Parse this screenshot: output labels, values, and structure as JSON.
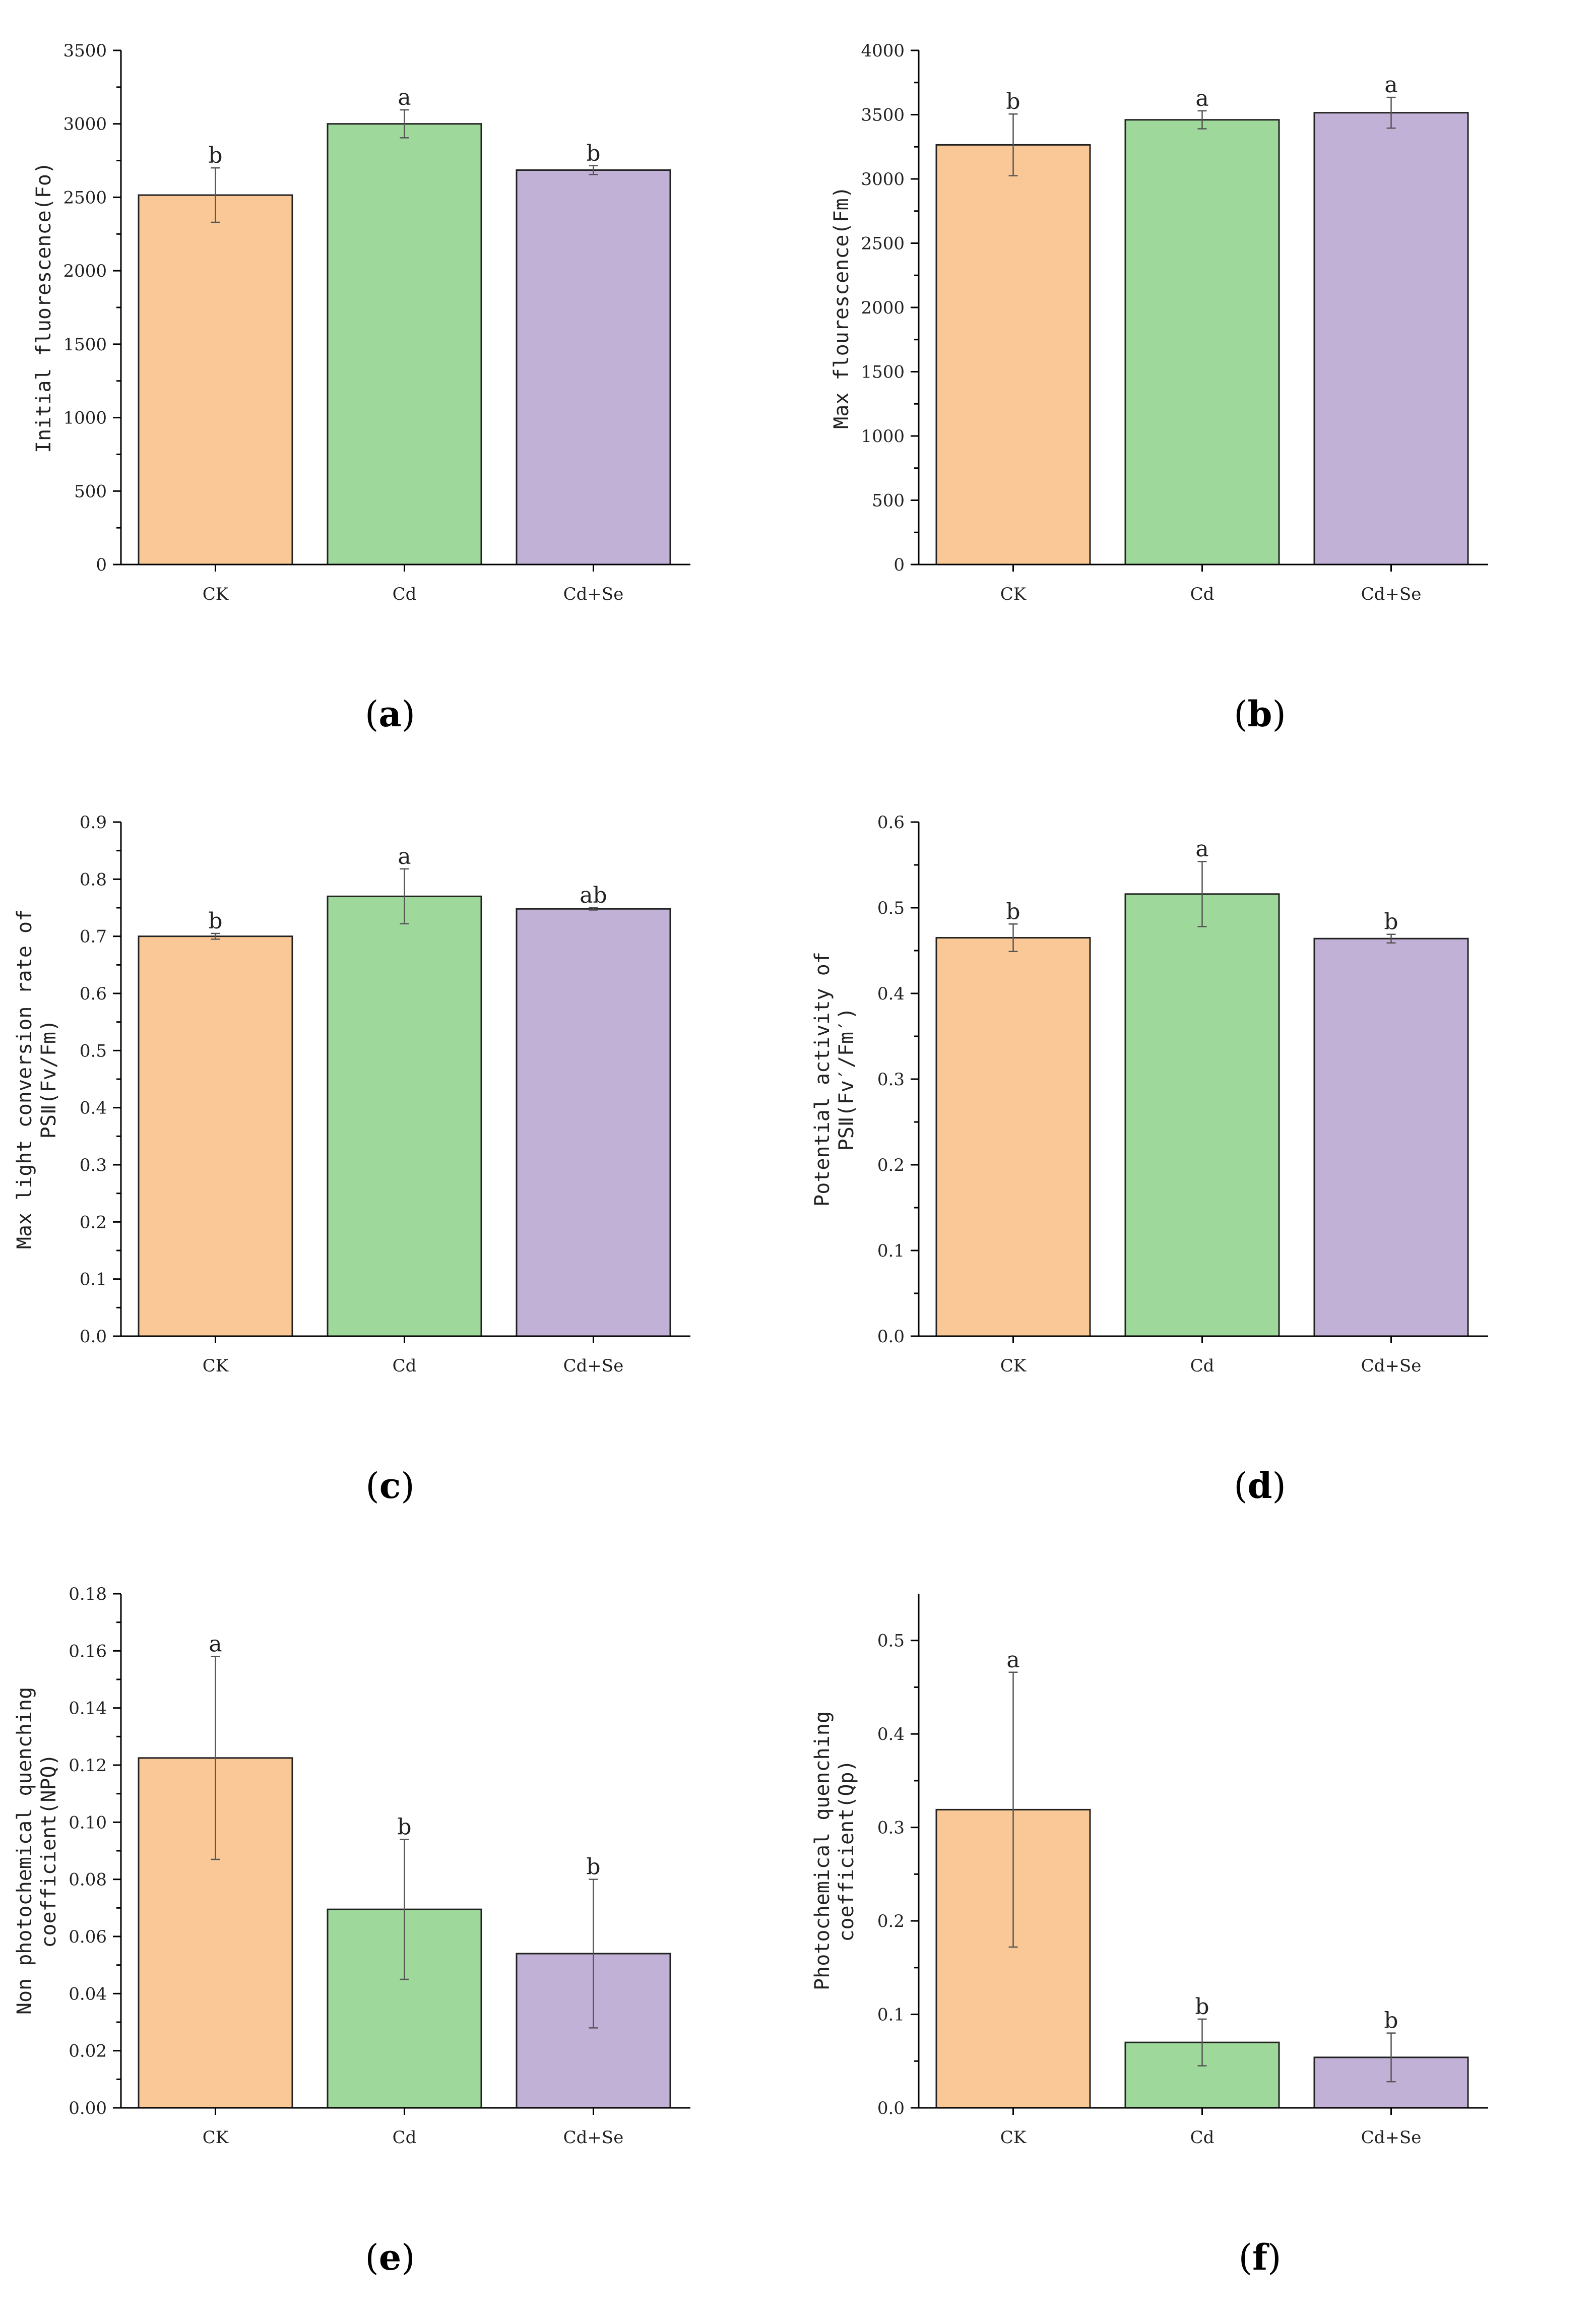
{
  "colors": {
    "CK": "#f9c896",
    "Cd": "#9ed89a",
    "Cd+Se": "#c1b1d6"
  },
  "chart_data": [
    {
      "id": "a",
      "type": "bar",
      "caption": "a",
      "categories": [
        "CK",
        "Cd",
        "Cd+Se"
      ],
      "values": [
        2515,
        3000,
        2685
      ],
      "errors": [
        185,
        95,
        30
      ],
      "significance": [
        "b",
        "a",
        "b"
      ],
      "ylabel": "Initial fluorescence(Fo)",
      "ylim": [
        0,
        3500
      ],
      "major_ticks": [
        0,
        500,
        1000,
        1500,
        2000,
        2500,
        3000,
        3500
      ],
      "tick_labels": [
        "0",
        "500",
        "1000",
        "1500",
        "2000",
        "2500",
        "3000",
        "3500"
      ]
    },
    {
      "id": "b",
      "type": "bar",
      "caption": "b",
      "categories": [
        "CK",
        "Cd",
        "Cd+Se"
      ],
      "values": [
        3265,
        3460,
        3515
      ],
      "errors": [
        240,
        70,
        120
      ],
      "significance": [
        "b",
        "a",
        "a"
      ],
      "ylabel": "Max flourescence(Fm)",
      "ylim": [
        0,
        4000
      ],
      "major_ticks": [
        0,
        500,
        1000,
        1500,
        2000,
        2500,
        3000,
        3500,
        4000
      ],
      "tick_labels": [
        "0",
        "500",
        "1000",
        "1500",
        "2000",
        "2500",
        "3000",
        "3500",
        "4000"
      ]
    },
    {
      "id": "c",
      "type": "bar",
      "caption": "c",
      "categories": [
        "CK",
        "Cd",
        "Cd+Se"
      ],
      "values": [
        0.7,
        0.77,
        0.748
      ],
      "errors": [
        0.005,
        0.048,
        0.002
      ],
      "significance": [
        "b",
        "a",
        "ab"
      ],
      "ylabel": [
        "Max light conversion rate of",
        "PSⅡ(Fv/Fm)"
      ],
      "ylim": [
        0,
        0.9
      ],
      "major_ticks": [
        0,
        0.1,
        0.2,
        0.3,
        0.4,
        0.5,
        0.6,
        0.7,
        0.8,
        0.9
      ],
      "tick_labels": [
        "0.0",
        "0.1",
        "0.2",
        "0.3",
        "0.4",
        "0.5",
        "0.6",
        "0.7",
        "0.8",
        "0.9"
      ]
    },
    {
      "id": "d",
      "type": "bar",
      "caption": "d",
      "categories": [
        "CK",
        "Cd",
        "Cd+Se"
      ],
      "values": [
        0.465,
        0.516,
        0.464
      ],
      "errors": [
        0.016,
        0.038,
        0.005
      ],
      "significance": [
        "b",
        "a",
        "b"
      ],
      "ylabel": [
        "Potential activity of",
        "PSⅡ(Fv′/Fm′)"
      ],
      "ylim": [
        0,
        0.6
      ],
      "major_ticks": [
        0,
        0.1,
        0.2,
        0.3,
        0.4,
        0.5,
        0.6
      ],
      "tick_labels": [
        "0.0",
        "0.1",
        "0.2",
        "0.3",
        "0.4",
        "0.5",
        "0.6"
      ]
    },
    {
      "id": "e",
      "type": "bar",
      "caption": "e",
      "categories": [
        "CK",
        "Cd",
        "Cd+Se"
      ],
      "values": [
        0.1225,
        0.0695,
        0.054
      ],
      "errors": [
        0.0355,
        0.0245,
        0.026
      ],
      "significance": [
        "a",
        "b",
        "b"
      ],
      "ylabel": [
        "Non photochemical quenching",
        "coefficient(NPQ)"
      ],
      "ylim": [
        0,
        0.18
      ],
      "major_ticks": [
        0,
        0.02,
        0.04,
        0.06,
        0.08,
        0.1,
        0.12,
        0.14,
        0.16,
        0.18
      ],
      "tick_labels": [
        "0.00",
        "0.02",
        "0.04",
        "0.06",
        "0.08",
        "0.10",
        "0.12",
        "0.14",
        "0.16",
        "0.18"
      ]
    },
    {
      "id": "f",
      "type": "bar",
      "caption": "f",
      "categories": [
        "CK",
        "Cd",
        "Cd+Se"
      ],
      "values": [
        0.319,
        0.07,
        0.054
      ],
      "errors": [
        0.147,
        0.025,
        0.026
      ],
      "significance": [
        "a",
        "b",
        "b"
      ],
      "ylabel": [
        "Photochemical quenching",
        "coefficient(Qp)"
      ],
      "ylim": [
        0,
        0.55
      ],
      "major_ticks": [
        0,
        0.1,
        0.2,
        0.3,
        0.4,
        0.5
      ],
      "tick_labels": [
        "0.0",
        "0.1",
        "0.2",
        "0.3",
        "0.4",
        "0.5"
      ]
    }
  ]
}
